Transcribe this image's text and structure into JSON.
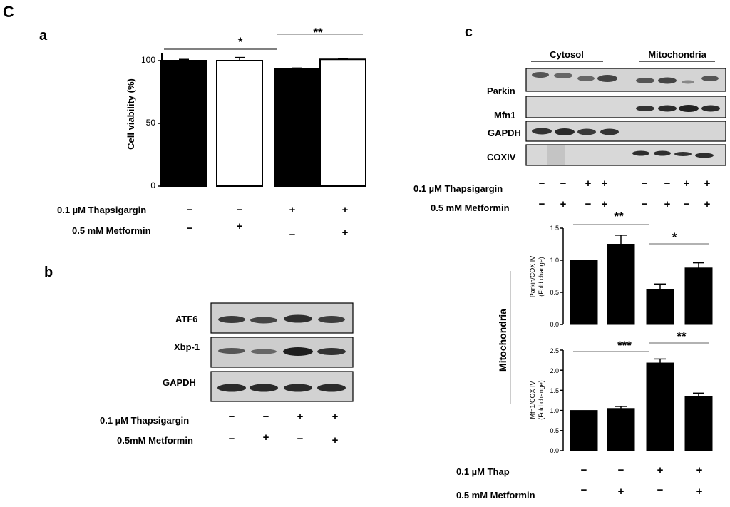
{
  "figure": {
    "panel_letter": "C",
    "panel_a": "a",
    "panel_b": "b",
    "panel_c": "c"
  },
  "panel_a": {
    "ylabel": "Cell viability (%)",
    "ticks": [
      "0",
      "50",
      "100"
    ],
    "conditions": [
      {
        "label": "0.1 µM Thapsigargin",
        "signs": [
          "−",
          "−",
          "+",
          "+"
        ]
      },
      {
        "label": "0.5 mM Metformin",
        "signs": [
          "−",
          "+",
          "−",
          "+"
        ]
      }
    ],
    "sig": [
      "*",
      "**"
    ]
  },
  "panel_b": {
    "bands": [
      "ATF6",
      "Xbp-1",
      "GAPDH"
    ],
    "conditions": [
      {
        "label": "0.1 µM Thapsigargin",
        "signs": [
          "−",
          "−",
          "+",
          "+"
        ]
      },
      {
        "label": "0.5mM Metformin",
        "signs": [
          "−",
          "+",
          "−",
          "+"
        ]
      }
    ]
  },
  "panel_c": {
    "header_cytosol": "Cytosol",
    "header_mito": "Mitochondria",
    "bands": [
      "Parkin",
      "Mfn1",
      "GAPDH",
      "COXIV"
    ],
    "blot_conditions": [
      {
        "label": "0.1 µM Thapsigargin",
        "signs": [
          "−",
          "−",
          "+",
          "+",
          "−",
          "−",
          "+",
          "+"
        ]
      },
      {
        "label": "0.5 mM Metformin",
        "signs": [
          "−",
          "+",
          "−",
          "+",
          "−",
          "+",
          "−",
          "+"
        ]
      }
    ],
    "side_label": "Mitochondria",
    "chart1": {
      "ylabel_line1": "Parkin/COX IV",
      "ylabel_line2": "(Fold change)",
      "ticks": [
        "0.0",
        "0.5",
        "1.0",
        "1.5"
      ],
      "sig": [
        "**",
        "*"
      ]
    },
    "chart2": {
      "ylabel_line1": "Mfn1/COX IV",
      "ylabel_line2": "(Fold change)",
      "ticks": [
        "0.0",
        "0.5",
        "1.0",
        "1.5",
        "2.0",
        "2.5"
      ],
      "sig": [
        "***",
        "**"
      ]
    },
    "chart_conditions": [
      {
        "label": "0.1 µM Thap",
        "signs": [
          "−",
          "−",
          "+",
          "+"
        ]
      },
      {
        "label": "0.5 mM Metformin",
        "signs": [
          "−",
          "+",
          "−",
          "+"
        ]
      }
    ]
  },
  "chart_data": [
    {
      "type": "bar",
      "categories": [
        "1",
        "2",
        "3",
        "4"
      ],
      "values": [
        100,
        100,
        93.5,
        101
      ],
      "errors": [
        1,
        2.5,
        0.6,
        0.8
      ],
      "fills": [
        "#000000",
        "#ffffff",
        "#000000",
        "#ffffff"
      ],
      "ylabel": "Cell viability (%)",
      "ylim": [
        0,
        100
      ],
      "significance": [
        {
          "from": 0,
          "to": 2,
          "label": "*"
        },
        {
          "from": 2,
          "to": 3,
          "label": "**"
        }
      ]
    },
    {
      "type": "bar",
      "categories": [
        "1",
        "2",
        "3",
        "4"
      ],
      "values": [
        1.0,
        1.25,
        0.55,
        0.88
      ],
      "errors": [
        0,
        0.14,
        0.08,
        0.08
      ],
      "ylabel": "Parkin/COX IV (Fold change)",
      "ylim": [
        0,
        1.5
      ],
      "significance": [
        {
          "from": 0,
          "to": 2,
          "label": "**"
        },
        {
          "from": 2,
          "to": 3,
          "label": "*"
        }
      ]
    },
    {
      "type": "bar",
      "categories": [
        "1",
        "2",
        "3",
        "4"
      ],
      "values": [
        1.0,
        1.05,
        2.18,
        1.35
      ],
      "errors": [
        0,
        0.05,
        0.1,
        0.08
      ],
      "ylabel": "Mfn1/COX IV (Fold change)",
      "ylim": [
        0,
        2.5
      ],
      "significance": [
        {
          "from": 0,
          "to": 2,
          "label": "***"
        },
        {
          "from": 2,
          "to": 3,
          "label": "**"
        }
      ]
    }
  ]
}
